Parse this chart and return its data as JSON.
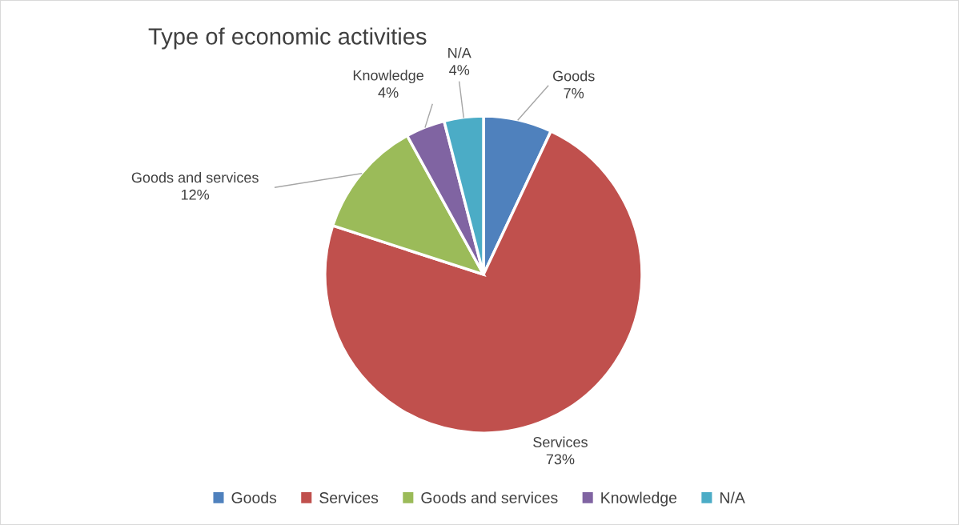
{
  "chart_data": {
    "type": "pie",
    "title": "Type of economic activities",
    "categories": [
      "Goods",
      "Services",
      "Goods and services",
      "Knowledge",
      "N/A"
    ],
    "values": [
      7,
      73,
      12,
      4,
      4
    ],
    "colors": [
      "#4f81bd",
      "#c0504d",
      "#9bbb59",
      "#8064a2",
      "#4bacc6"
    ],
    "value_labels": [
      "7%",
      "73%",
      "12%",
      "4%",
      "4%"
    ],
    "legend": "bottom"
  }
}
